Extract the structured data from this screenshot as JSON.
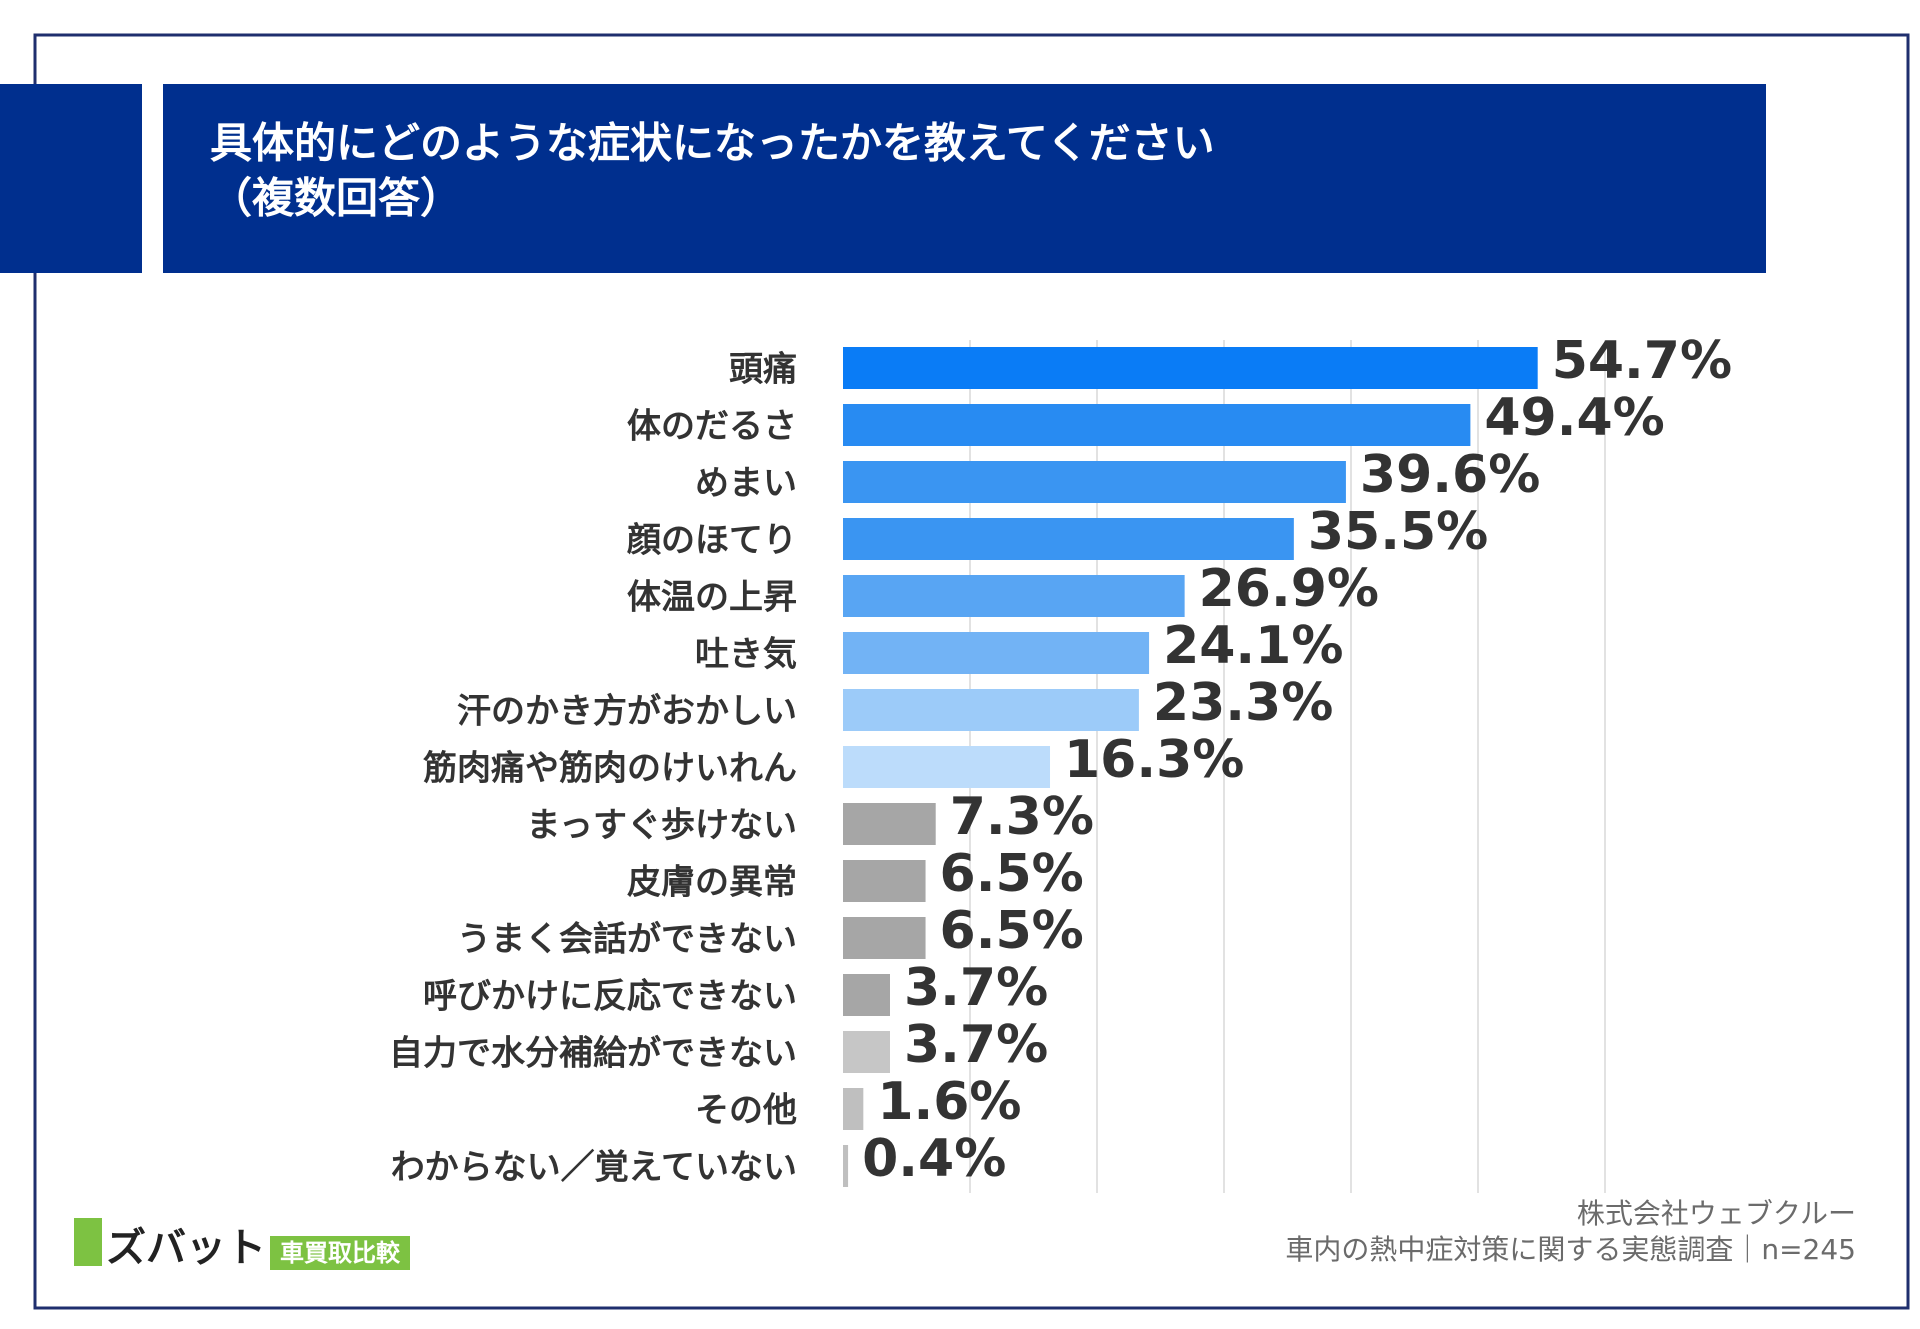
{
  "chart_data": {
    "type": "hbar",
    "title": "具体的にどのような症状になったかを教えてください",
    "subtitle": "（複数回答）",
    "categories": [
      "頭痛",
      "体のだるさ",
      "めまい",
      "顔のほてり",
      "体温の上昇",
      "吐き気",
      "汗のかき方がおかしい",
      "筋肉痛や筋肉のけいれん",
      "まっすぐ歩けない",
      "皮膚の異常",
      "うまく会話ができない",
      "呼びかけに反応できない",
      "自力で水分補給ができない",
      "その他",
      "わからない／覚えていない"
    ],
    "values": [
      54.7,
      49.4,
      39.6,
      35.5,
      26.9,
      24.1,
      23.3,
      16.3,
      7.3,
      6.5,
      6.5,
      3.7,
      3.7,
      1.6,
      0.4
    ],
    "value_labels": [
      "54.7%",
      "49.4%",
      "39.6%",
      "35.5%",
      "26.9%",
      "24.1%",
      "23.3%",
      "16.3%",
      "7.3%",
      "6.5%",
      "6.5%",
      "3.7%",
      "3.7%",
      "1.6%",
      "0.4%"
    ],
    "colors": [
      "#0a7cf6",
      "#288bf2",
      "#3a95f2",
      "#3a95f2",
      "#58a5f3",
      "#72b3f5",
      "#9ccbf9",
      "#bcdcfb",
      "#a6a6a6",
      "#a6a6a6",
      "#a6a6a6",
      "#a6a6a6",
      "#c6c6c6",
      "#bfbfbf",
      "#bfbfbf"
    ],
    "xlim": [
      0,
      60
    ],
    "xticks": [
      10,
      20,
      30,
      40,
      50,
      60
    ],
    "grid": true
  },
  "footer": {
    "company": "株式会社ウェブクルー",
    "survey": "車内の熱中症対策に関する実態調査｜n=245",
    "logo": "ズバット",
    "logo_tag": "車買取比較"
  }
}
